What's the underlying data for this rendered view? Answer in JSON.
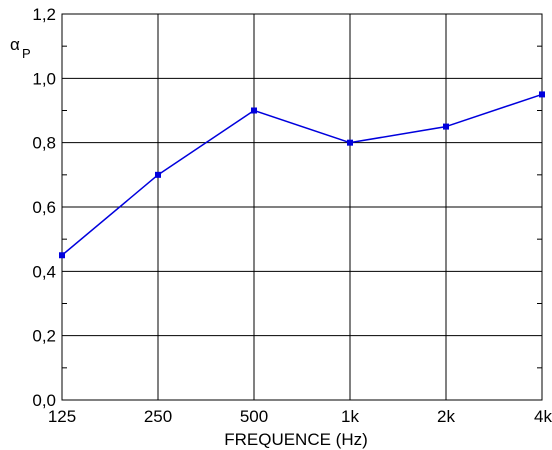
{
  "chart_data": {
    "type": "line",
    "title": "",
    "xlabel": "FREQUENCE (Hz)",
    "ylabel": "α",
    "ylabel_subscript": "P",
    "categories": [
      "125",
      "250",
      "500",
      "1k",
      "2k",
      "4k"
    ],
    "series": [
      {
        "values": [
          0.45,
          0.7,
          0.9,
          0.8,
          0.85,
          0.95
        ]
      }
    ],
    "ylim": [
      0,
      1.2
    ],
    "yticks": [
      0,
      0.2,
      0.4,
      0.6,
      0.8,
      1.0,
      1.2
    ],
    "ytick_labels": [
      "0,0",
      "0,2",
      "0,4",
      "0,6",
      "0,8",
      "1,0",
      "1,2"
    ],
    "grid": true,
    "x_scale": "log (octave bands)",
    "colors": {
      "series": "#0000dd",
      "grid": "#000000",
      "background": "#ffffff"
    }
  }
}
